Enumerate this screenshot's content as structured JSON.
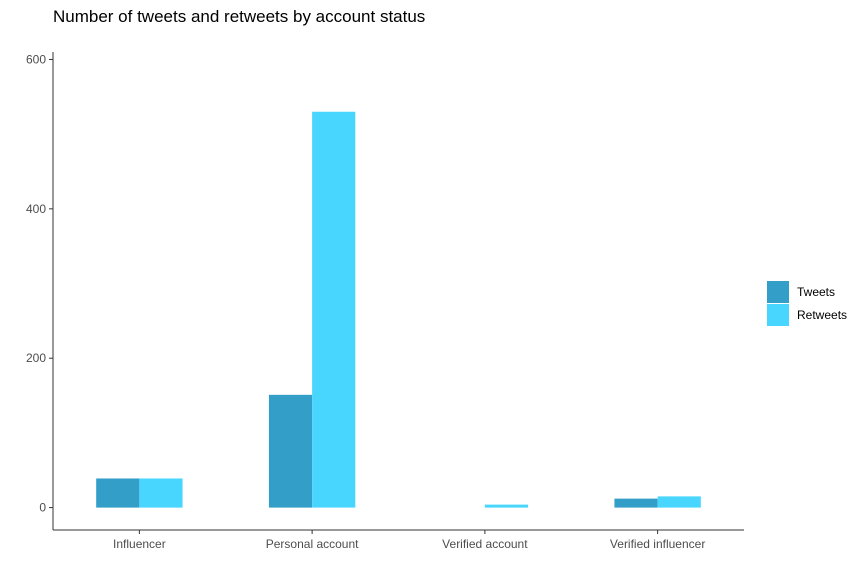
{
  "chart_data": {
    "type": "bar",
    "title": "Number of tweets and retweets by account status",
    "xlabel": "",
    "ylabel": "",
    "categories": [
      "Influencer",
      "Personal account",
      "Verified account",
      "Verified influencer"
    ],
    "series": [
      {
        "name": "Tweets",
        "color": "#339fc8",
        "values": [
          39,
          151,
          0,
          12
        ]
      },
      {
        "name": "Retweets",
        "color": "#48d6ff",
        "values": [
          39,
          530,
          4,
          15
        ]
      }
    ],
    "ylim": [
      -30,
      610
    ],
    "yticks": [
      0,
      200,
      400,
      600
    ],
    "grid": false,
    "legend_position": "right"
  }
}
